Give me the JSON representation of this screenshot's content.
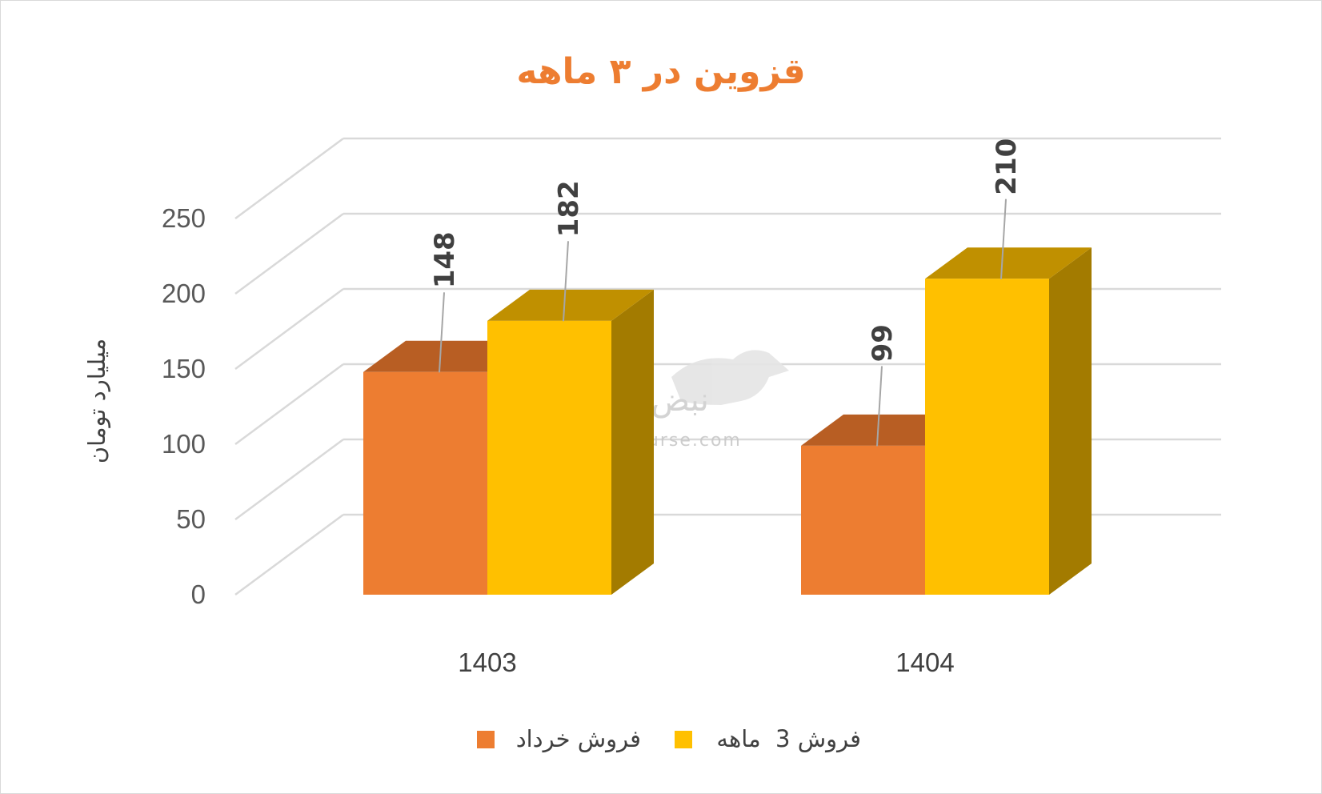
{
  "chart_data": {
    "type": "bar",
    "title": "قزوین در ۳ ماهه",
    "ylabel": "میلیارد تومان",
    "xlabel": "",
    "ylim": [
      0,
      250
    ],
    "yticks": [
      "0",
      "50",
      "100",
      "150",
      "200",
      "250"
    ],
    "categories": [
      "1403",
      "1404"
    ],
    "series": [
      {
        "name": "فروش خرداد",
        "values": [
          148,
          99
        ],
        "color": "#ed7d31",
        "top_color": "#b85e23",
        "side_color": "#a95520"
      },
      {
        "name": "فروش 3  ماهه",
        "values": [
          182,
          210
        ],
        "color": "#ffc000",
        "top_color": "#c09000",
        "side_color": "#a37b00"
      }
    ],
    "data_labels": [
      [
        "148",
        "99"
      ],
      [
        "182",
        "210"
      ]
    ],
    "legend_position": "bottom",
    "grid": true,
    "style": "3d-column"
  },
  "watermark": {
    "brand": "نبض بورس",
    "url": "nabzebourse.com"
  }
}
